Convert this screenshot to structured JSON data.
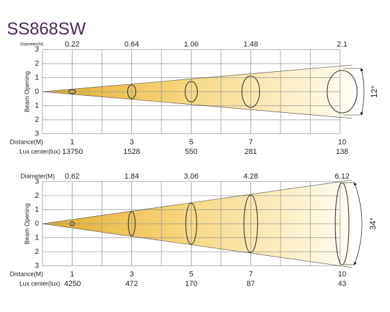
{
  "title": "SS868SW",
  "panels": [
    {
      "diameter_label": "Diameter(M)",
      "diameters": [
        "0.22",
        "0.64",
        "1.06",
        "1.48",
        "2.1"
      ],
      "axis_label": "Beam Opening",
      "y_ticks": [
        "3",
        "2",
        "1",
        "0",
        "1",
        "2",
        "3"
      ],
      "distance_label": "Distance(M)",
      "distances": [
        "1",
        "3",
        "5",
        "7",
        "10"
      ],
      "lux_label": "Lux center(lux)",
      "lux": [
        "13750",
        "1528",
        "550",
        "281",
        "138"
      ],
      "angle": "12°"
    },
    {
      "diameter_label": "Diameter(M)",
      "diameters": [
        "0.62",
        "1.84",
        "3.06",
        "4.28",
        "6.12"
      ],
      "axis_label": "Beam Opening",
      "y_ticks": [
        "3",
        "2",
        "1",
        "0",
        "1",
        "2",
        "3"
      ],
      "distance_label": "Distance(M)",
      "distances": [
        "1",
        "3",
        "5",
        "7",
        "10"
      ],
      "lux_label": "Lux center(lux)",
      "lux": [
        "4250",
        "472",
        "170",
        "87",
        "43"
      ],
      "angle": "34°"
    }
  ]
}
